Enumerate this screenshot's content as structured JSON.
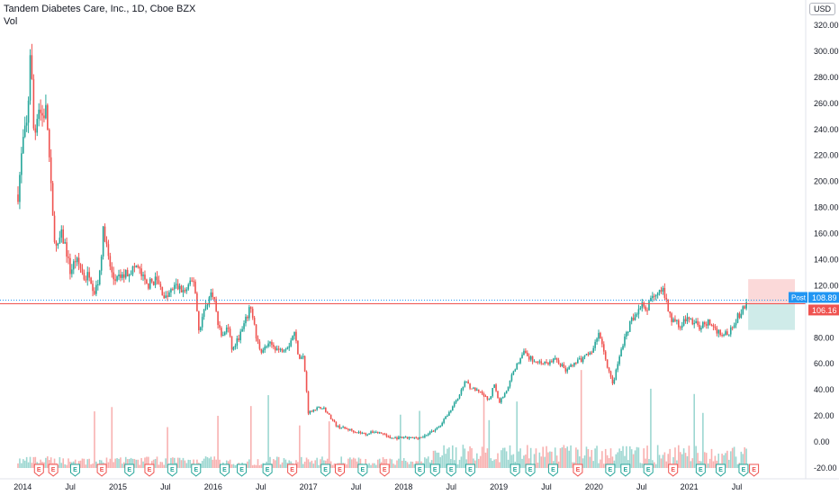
{
  "header": {
    "title": "Tandem Diabetes Care, Inc., 1D, Cboe BZX",
    "sub": "Vol"
  },
  "currency": "USD",
  "colors": {
    "up": "#26a69a",
    "down": "#ef5350",
    "last_line": "#ef5350",
    "post_line": "#2196f3",
    "post_badge": "#2196f3",
    "earnings": "#ef5350",
    "earnings_up": "#26a69a"
  },
  "price_labels": {
    "post_tag": "Post",
    "post": "108.89",
    "prev": "108.67",
    "last": "106.16"
  },
  "chart_data": {
    "type": "candlestick",
    "y_ticks": [
      "320.00",
      "300.00",
      "280.00",
      "260.00",
      "240.00",
      "220.00",
      "200.00",
      "180.00",
      "160.00",
      "140.00",
      "120.00",
      "100.00",
      "80.00",
      "60.00",
      "40.00",
      "20.00",
      "0.00",
      "-20.00"
    ],
    "ylim": [
      -20,
      320
    ],
    "x_ticks": [
      {
        "label": "2014",
        "t": 2014.0
      },
      {
        "label": "Jul",
        "t": 2014.5
      },
      {
        "label": "2015",
        "t": 2015.0
      },
      {
        "label": "Jul",
        "t": 2015.5
      },
      {
        "label": "2016",
        "t": 2016.0
      },
      {
        "label": "Jul",
        "t": 2016.5
      },
      {
        "label": "2017",
        "t": 2017.0
      },
      {
        "label": "Jul",
        "t": 2017.5
      },
      {
        "label": "2018",
        "t": 2018.0
      },
      {
        "label": "Jul",
        "t": 2018.5
      },
      {
        "label": "2019",
        "t": 2019.0
      },
      {
        "label": "Jul",
        "t": 2019.5
      },
      {
        "label": "2020",
        "t": 2020.0
      },
      {
        "label": "Jul",
        "t": 2020.5
      },
      {
        "label": "2021",
        "t": 2021.0
      },
      {
        "label": "Jul",
        "t": 2021.5
      }
    ],
    "x_range": [
      2013.95,
      2021.75
    ],
    "price_path": [
      [
        2013.95,
        190
      ],
      [
        2014.0,
        230
      ],
      [
        2014.05,
        245
      ],
      [
        2014.08,
        305
      ],
      [
        2014.12,
        230
      ],
      [
        2014.16,
        260
      ],
      [
        2014.2,
        250
      ],
      [
        2014.25,
        255
      ],
      [
        2014.28,
        215
      ],
      [
        2014.32,
        165
      ],
      [
        2014.36,
        145
      ],
      [
        2014.4,
        160
      ],
      [
        2014.45,
        150
      ],
      [
        2014.5,
        130
      ],
      [
        2014.55,
        140
      ],
      [
        2014.6,
        135
      ],
      [
        2014.65,
        125
      ],
      [
        2014.7,
        130
      ],
      [
        2014.75,
        115
      ],
      [
        2014.8,
        125
      ],
      [
        2014.85,
        165
      ],
      [
        2014.9,
        140
      ],
      [
        2014.95,
        125
      ],
      [
        2015.0,
        125
      ],
      [
        2015.1,
        130
      ],
      [
        2015.2,
        135
      ],
      [
        2015.3,
        120
      ],
      [
        2015.4,
        125
      ],
      [
        2015.5,
        110
      ],
      [
        2015.6,
        120
      ],
      [
        2015.7,
        115
      ],
      [
        2015.8,
        125
      ],
      [
        2015.85,
        85
      ],
      [
        2015.9,
        100
      ],
      [
        2015.95,
        110
      ],
      [
        2016.0,
        115
      ],
      [
        2016.05,
        90
      ],
      [
        2016.1,
        80
      ],
      [
        2016.15,
        90
      ],
      [
        2016.2,
        70
      ],
      [
        2016.3,
        85
      ],
      [
        2016.4,
        105
      ],
      [
        2016.45,
        80
      ],
      [
        2016.5,
        70
      ],
      [
        2016.6,
        75
      ],
      [
        2016.7,
        70
      ],
      [
        2016.8,
        75
      ],
      [
        2016.85,
        85
      ],
      [
        2016.9,
        65
      ],
      [
        2016.95,
        65
      ],
      [
        2017.0,
        22
      ],
      [
        2017.05,
        25
      ],
      [
        2017.15,
        27
      ],
      [
        2017.2,
        22
      ],
      [
        2017.3,
        12
      ],
      [
        2017.4,
        10
      ],
      [
        2017.5,
        8
      ],
      [
        2017.6,
        6
      ],
      [
        2017.7,
        8
      ],
      [
        2017.8,
        6
      ],
      [
        2017.85,
        3
      ],
      [
        2017.9,
        3
      ],
      [
        2018.0,
        3
      ],
      [
        2018.1,
        3
      ],
      [
        2018.2,
        4
      ],
      [
        2018.3,
        8
      ],
      [
        2018.4,
        14
      ],
      [
        2018.45,
        20
      ],
      [
        2018.5,
        25
      ],
      [
        2018.55,
        32
      ],
      [
        2018.6,
        38
      ],
      [
        2018.65,
        48
      ],
      [
        2018.7,
        42
      ],
      [
        2018.8,
        38
      ],
      [
        2018.9,
        32
      ],
      [
        2018.95,
        45
      ],
      [
        2019.0,
        30
      ],
      [
        2019.1,
        42
      ],
      [
        2019.15,
        55
      ],
      [
        2019.2,
        60
      ],
      [
        2019.25,
        70
      ],
      [
        2019.3,
        65
      ],
      [
        2019.4,
        62
      ],
      [
        2019.5,
        60
      ],
      [
        2019.6,
        64
      ],
      [
        2019.7,
        55
      ],
      [
        2019.8,
        60
      ],
      [
        2019.9,
        65
      ],
      [
        2020.0,
        72
      ],
      [
        2020.05,
        85
      ],
      [
        2020.1,
        70
      ],
      [
        2020.15,
        55
      ],
      [
        2020.2,
        45
      ],
      [
        2020.25,
        60
      ],
      [
        2020.3,
        75
      ],
      [
        2020.35,
        85
      ],
      [
        2020.4,
        95
      ],
      [
        2020.45,
        100
      ],
      [
        2020.5,
        105
      ],
      [
        2020.55,
        100
      ],
      [
        2020.6,
        110
      ],
      [
        2020.65,
        115
      ],
      [
        2020.7,
        120
      ],
      [
        2020.75,
        110
      ],
      [
        2020.8,
        95
      ],
      [
        2020.9,
        90
      ],
      [
        2021.0,
        95
      ],
      [
        2021.1,
        88
      ],
      [
        2021.2,
        92
      ],
      [
        2021.3,
        85
      ],
      [
        2021.4,
        82
      ],
      [
        2021.45,
        90
      ],
      [
        2021.5,
        95
      ],
      [
        2021.55,
        100
      ],
      [
        2021.6,
        106
      ]
    ],
    "last_price": 106.16,
    "post_price": 108.89,
    "earnings": [
      {
        "t": 2014.17,
        "label": "E",
        "color": "down"
      },
      {
        "t": 2014.32,
        "label": "E",
        "color": "down"
      },
      {
        "t": 2014.55,
        "label": "E",
        "color": "up"
      },
      {
        "t": 2014.83,
        "label": "E",
        "color": "down"
      },
      {
        "t": 2015.12,
        "label": "E",
        "color": "up"
      },
      {
        "t": 2015.33,
        "label": "E",
        "color": "down"
      },
      {
        "t": 2015.57,
        "label": "E",
        "color": "up"
      },
      {
        "t": 2015.82,
        "label": "E",
        "color": "up"
      },
      {
        "t": 2016.12,
        "label": "E",
        "color": "up"
      },
      {
        "t": 2016.3,
        "label": "E",
        "color": "up"
      },
      {
        "t": 2016.57,
        "label": "E",
        "color": "up"
      },
      {
        "t": 2016.83,
        "label": "E",
        "color": "down"
      },
      {
        "t": 2017.18,
        "label": "E",
        "color": "up"
      },
      {
        "t": 2017.33,
        "label": "E",
        "color": "down"
      },
      {
        "t": 2017.57,
        "label": "E",
        "color": "up"
      },
      {
        "t": 2017.8,
        "label": "E",
        "color": "down"
      },
      {
        "t": 2018.17,
        "label": "E",
        "color": "up"
      },
      {
        "t": 2018.33,
        "label": "E",
        "color": "up"
      },
      {
        "t": 2018.5,
        "label": "E",
        "color": "up"
      },
      {
        "t": 2018.7,
        "label": "E",
        "color": "up"
      },
      {
        "t": 2019.17,
        "label": "E",
        "color": "up"
      },
      {
        "t": 2019.33,
        "label": "E",
        "color": "up"
      },
      {
        "t": 2019.57,
        "label": "E",
        "color": "up"
      },
      {
        "t": 2019.83,
        "label": "E",
        "color": "down"
      },
      {
        "t": 2020.17,
        "label": "E",
        "color": "up"
      },
      {
        "t": 2020.33,
        "label": "E",
        "color": "up"
      },
      {
        "t": 2020.57,
        "label": "E",
        "color": "up"
      },
      {
        "t": 2020.83,
        "label": "E",
        "color": "down"
      },
      {
        "t": 2021.12,
        "label": "E",
        "color": "up"
      },
      {
        "t": 2021.33,
        "label": "E",
        "color": "up"
      },
      {
        "t": 2021.57,
        "label": "E",
        "color": "up"
      },
      {
        "t": 2021.68,
        "label": "E",
        "color": "down"
      }
    ],
    "position_tool": {
      "target_top": 125,
      "entry": 106.16,
      "stop_bottom": 86
    }
  }
}
